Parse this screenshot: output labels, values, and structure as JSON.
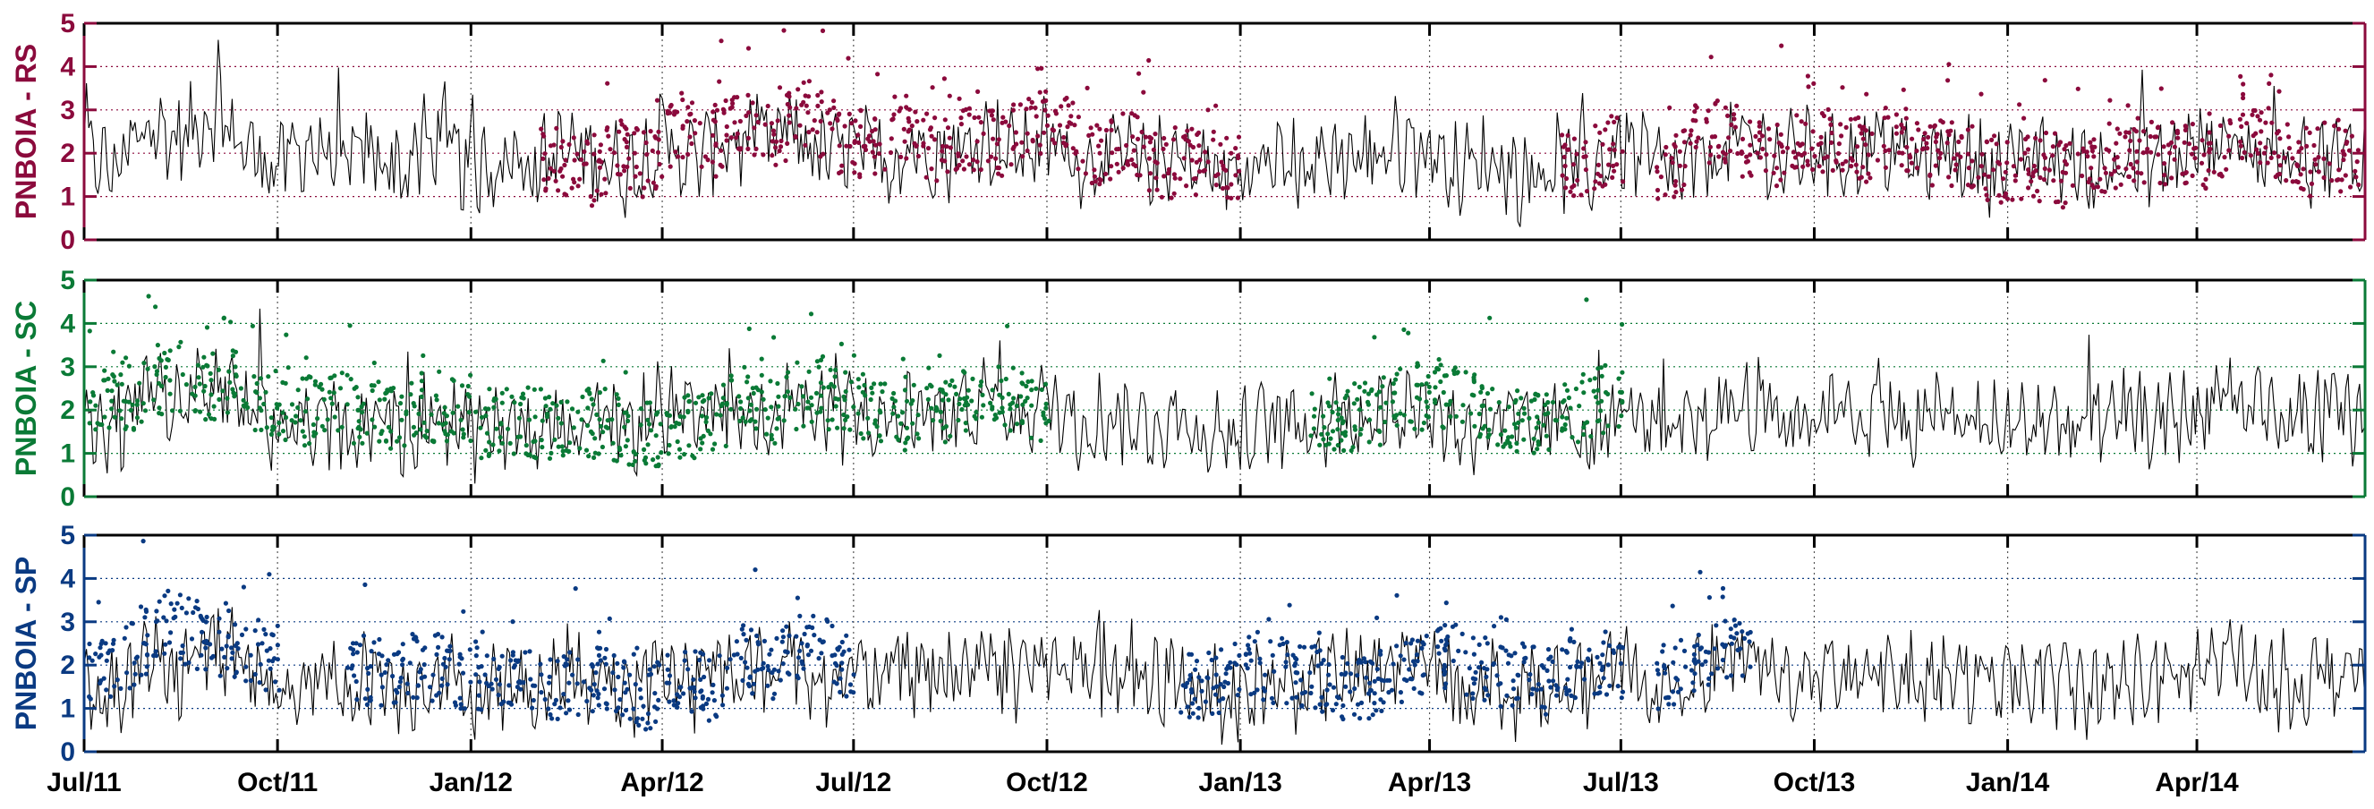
{
  "chart_data": {
    "type": "line",
    "panels": [
      {
        "ylabel": "PNBOIA - RS",
        "color": "#8b0a3c",
        "ylim": [
          0,
          5
        ],
        "yticks": [
          "0",
          "1",
          "2",
          "3",
          "4",
          "5"
        ],
        "series": [
          {
            "label": "",
            "style": "line",
            "color": "#000000",
            "x": [
              "2011-07-01",
              "2011-07-16",
              "2011-08-01",
              "2011-08-16",
              "2011-09-01",
              "2011-09-16",
              "2011-10-01",
              "2011-10-16",
              "2011-11-01",
              "2011-11-16",
              "2011-12-01",
              "2011-12-16",
              "2012-01-01",
              "2012-01-16",
              "2012-02-01",
              "2012-02-16",
              "2012-03-01",
              "2012-03-16",
              "2012-04-01",
              "2012-04-16",
              "2012-05-01",
              "2012-05-16",
              "2012-06-01",
              "2012-06-16",
              "2012-07-01",
              "2012-07-16",
              "2012-08-01",
              "2012-08-16",
              "2012-09-01",
              "2012-09-16",
              "2012-10-01",
              "2012-10-16",
              "2012-11-01",
              "2012-11-16",
              "2012-12-01",
              "2012-12-16",
              "2013-01-01",
              "2013-01-16",
              "2013-02-01",
              "2013-02-16",
              "2013-03-01",
              "2013-03-16",
              "2013-04-01",
              "2013-04-16",
              "2013-05-01",
              "2013-05-16",
              "2013-06-01",
              "2013-06-16",
              "2013-07-01",
              "2013-07-16",
              "2013-08-01",
              "2013-08-16",
              "2013-09-01",
              "2013-09-16",
              "2013-10-01",
              "2013-10-16",
              "2013-11-01",
              "2013-11-16",
              "2013-12-01",
              "2013-12-16",
              "2014-01-01",
              "2014-01-16",
              "2014-02-01",
              "2014-02-16",
              "2014-03-01",
              "2014-03-16",
              "2014-04-01",
              "2014-04-16",
              "2014-05-01",
              "2014-05-16",
              "2014-06-01",
              "2014-06-16"
            ],
            "y": [
              2.0,
              1.6,
              2.6,
              2.3,
              3.0,
              2.1,
              1.7,
              2.2,
              1.8,
              2.0,
              1.6,
              2.3,
              1.5,
              1.9,
              1.7,
              2.1,
              1.9,
              1.6,
              2.3,
              1.8,
              2.4,
              2.0,
              2.6,
              1.9,
              2.1,
              1.8,
              2.2,
              1.9,
              2.4,
              2.0,
              2.3,
              1.8,
              2.0,
              1.7,
              1.9,
              1.6,
              1.5,
              1.8,
              1.7,
              2.0,
              1.9,
              2.2,
              2.1,
              1.6,
              1.9,
              1.4,
              1.8,
              1.5,
              2.2,
              1.7,
              1.5,
              2.0,
              2.3,
              1.8,
              2.1,
              1.9,
              2.2,
              1.7,
              2.0,
              1.8,
              1.6,
              1.9,
              1.7,
              1.5,
              1.9,
              1.8,
              2.1,
              2.4,
              1.9,
              1.6,
              2.0,
              1.8
            ]
          },
          {
            "label": "",
            "style": "dots",
            "color": "#8b0a3c",
            "x": [
              "2012-02-10",
              "2012-02-25",
              "2012-03-10",
              "2012-03-25",
              "2012-04-10",
              "2012-04-25",
              "2012-05-10",
              "2012-05-25",
              "2012-06-10",
              "2012-06-25",
              "2012-07-10",
              "2012-07-25",
              "2012-08-10",
              "2012-08-25",
              "2012-09-10",
              "2012-09-25",
              "2012-10-10",
              "2012-10-25",
              "2012-11-10",
              "2012-11-25",
              "2012-12-10",
              "2012-12-25",
              "2013-06-10",
              "2013-06-25",
              "2013-07-25",
              "2013-08-10",
              "2013-08-25",
              "2013-09-10",
              "2013-09-25",
              "2013-10-10",
              "2013-10-25",
              "2013-11-10",
              "2013-11-25",
              "2013-12-10",
              "2013-12-25",
              "2014-01-10",
              "2014-01-25",
              "2014-02-10",
              "2014-02-25",
              "2014-03-10",
              "2014-03-25",
              "2014-04-10",
              "2014-04-25",
              "2014-05-10",
              "2014-05-25",
              "2014-06-10"
            ],
            "y": [
              1.8,
              1.5,
              2.0,
              1.7,
              2.6,
              2.2,
              2.8,
              2.4,
              3.0,
              2.1,
              2.3,
              2.6,
              2.0,
              2.4,
              2.2,
              2.7,
              2.5,
              1.9,
              2.2,
              1.6,
              1.8,
              1.7,
              1.7,
              2.1,
              1.6,
              2.6,
              2.3,
              2.0,
              2.2,
              2.3,
              2.0,
              2.4,
              1.9,
              2.1,
              1.6,
              1.7,
              1.5,
              1.8,
              2.0,
              2.1,
              2.0,
              1.9,
              2.7,
              2.2,
              1.8,
              1.9
            ]
          }
        ]
      },
      {
        "ylabel": "PNBOIA - SC",
        "color": "#0a7a36",
        "ylim": [
          0,
          5
        ],
        "yticks": [
          "0",
          "1",
          "2",
          "3",
          "4",
          "5"
        ],
        "series": [
          {
            "label": "",
            "style": "line",
            "color": "#000000",
            "x": [
              "2011-07-01",
              "2011-07-16",
              "2011-08-01",
              "2011-08-16",
              "2011-09-01",
              "2011-09-16",
              "2011-10-01",
              "2011-10-16",
              "2011-11-01",
              "2011-11-16",
              "2011-12-01",
              "2011-12-16",
              "2012-01-01",
              "2012-01-16",
              "2012-02-01",
              "2012-02-16",
              "2012-03-01",
              "2012-03-16",
              "2012-04-01",
              "2012-04-16",
              "2012-05-01",
              "2012-05-16",
              "2012-06-01",
              "2012-06-16",
              "2012-07-01",
              "2012-07-16",
              "2012-08-01",
              "2012-08-16",
              "2012-09-01",
              "2012-09-16",
              "2012-10-01",
              "2012-10-16",
              "2012-11-01",
              "2012-11-16",
              "2012-12-01",
              "2012-12-16",
              "2013-01-01",
              "2013-01-16",
              "2013-02-01",
              "2013-02-16",
              "2013-03-01",
              "2013-03-16",
              "2013-04-01",
              "2013-04-16",
              "2013-05-01",
              "2013-05-16",
              "2013-06-01",
              "2013-06-16",
              "2013-07-01",
              "2013-07-16",
              "2013-08-01",
              "2013-08-16",
              "2013-09-01",
              "2013-09-16",
              "2013-10-01",
              "2013-10-16",
              "2013-11-01",
              "2013-11-16",
              "2013-12-01",
              "2013-12-16",
              "2014-01-01",
              "2014-01-16",
              "2014-02-01",
              "2014-02-16",
              "2014-03-01",
              "2014-03-16",
              "2014-04-01",
              "2014-04-16",
              "2014-05-01",
              "2014-05-16",
              "2014-06-01",
              "2014-06-16"
            ],
            "y": [
              1.6,
              1.4,
              2.4,
              2.0,
              2.6,
              1.9,
              1.5,
              1.8,
              1.6,
              1.9,
              1.5,
              2.0,
              1.4,
              1.7,
              1.5,
              1.9,
              1.7,
              1.5,
              2.1,
              1.6,
              2.2,
              1.8,
              2.4,
              1.8,
              1.9,
              1.7,
              2.0,
              1.8,
              2.3,
              1.9,
              2.2,
              1.7,
              1.9,
              1.6,
              1.8,
              1.5,
              1.4,
              1.7,
              1.6,
              1.9,
              1.8,
              2.1,
              2.0,
              1.5,
              1.8,
              1.4,
              1.7,
              1.5,
              2.1,
              1.6,
              1.5,
              2.0,
              2.2,
              1.7,
              2.0,
              1.8,
              2.1,
              1.6,
              1.9,
              1.7,
              1.5,
              1.8,
              1.6,
              1.5,
              1.8,
              1.7,
              2.0,
              2.3,
              1.8,
              1.6,
              1.9,
              1.8
            ]
          },
          {
            "label": "",
            "style": "dots",
            "color": "#0a7a36",
            "x": [
              "2011-07-10",
              "2011-07-25",
              "2011-08-10",
              "2011-08-25",
              "2011-09-10",
              "2011-09-25",
              "2011-10-10",
              "2011-10-25",
              "2011-11-10",
              "2011-11-25",
              "2011-12-10",
              "2011-12-25",
              "2012-01-10",
              "2012-01-25",
              "2012-02-10",
              "2012-02-25",
              "2012-03-10",
              "2012-03-25",
              "2012-04-10",
              "2012-04-25",
              "2012-05-10",
              "2012-05-25",
              "2012-06-10",
              "2012-06-25",
              "2012-07-10",
              "2012-07-25",
              "2012-08-10",
              "2012-08-25",
              "2012-09-10",
              "2012-09-25",
              "2013-02-10",
              "2013-02-25",
              "2013-03-10",
              "2013-03-25",
              "2013-04-10",
              "2013-04-25",
              "2013-05-10",
              "2013-05-25",
              "2013-06-10",
              "2013-06-25"
            ],
            "y": [
              2.0,
              2.3,
              2.8,
              2.5,
              2.6,
              2.2,
              1.9,
              2.1,
              2.0,
              1.8,
              2.1,
              1.9,
              1.6,
              1.8,
              1.5,
              1.7,
              1.6,
              1.4,
              1.7,
              1.6,
              2.3,
              2.0,
              2.5,
              2.2,
              2.1,
              1.8,
              2.0,
              2.2,
              2.4,
              2.1,
              1.6,
              1.9,
              2.0,
              2.3,
              2.4,
              2.0,
              1.8,
              1.6,
              2.0,
              2.3
            ]
          }
        ]
      },
      {
        "ylabel": "PNBOIA - SP",
        "color": "#0a3a82",
        "ylim": [
          0,
          5
        ],
        "yticks": [
          "0",
          "1",
          "2",
          "3",
          "4",
          "5"
        ],
        "series": [
          {
            "label": "",
            "style": "line",
            "color": "#000000",
            "x": [
              "2011-07-01",
              "2011-07-16",
              "2011-08-01",
              "2011-08-16",
              "2011-09-01",
              "2011-09-16",
              "2011-10-01",
              "2011-10-16",
              "2011-11-01",
              "2011-11-16",
              "2011-12-01",
              "2011-12-16",
              "2012-01-01",
              "2012-01-16",
              "2012-02-01",
              "2012-02-16",
              "2012-03-01",
              "2012-03-16",
              "2012-04-01",
              "2012-04-16",
              "2012-05-01",
              "2012-05-16",
              "2012-06-01",
              "2012-06-16",
              "2012-07-01",
              "2012-07-16",
              "2012-08-01",
              "2012-08-16",
              "2012-09-01",
              "2012-09-16",
              "2012-10-01",
              "2012-10-16",
              "2012-11-01",
              "2012-11-16",
              "2012-12-01",
              "2012-12-16",
              "2013-01-01",
              "2013-01-16",
              "2013-02-01",
              "2013-02-16",
              "2013-03-01",
              "2013-03-16",
              "2013-04-01",
              "2013-04-16",
              "2013-05-01",
              "2013-05-16",
              "2013-06-01",
              "2013-06-16",
              "2013-07-01",
              "2013-07-16",
              "2013-08-01",
              "2013-08-16",
              "2013-09-01",
              "2013-09-16",
              "2013-10-01",
              "2013-10-16",
              "2013-11-01",
              "2013-11-16",
              "2013-12-01",
              "2013-12-16",
              "2014-01-01",
              "2014-01-16",
              "2014-02-01",
              "2014-02-16",
              "2014-03-01",
              "2014-03-16",
              "2014-04-01",
              "2014-04-16",
              "2014-05-01",
              "2014-05-16",
              "2014-06-01",
              "2014-06-16"
            ],
            "y": [
              1.5,
              1.3,
              2.2,
              1.9,
              2.5,
              1.8,
              1.4,
              1.7,
              1.5,
              1.8,
              1.4,
              1.9,
              1.3,
              1.6,
              1.4,
              1.8,
              1.6,
              1.4,
              2.0,
              1.5,
              2.1,
              1.7,
              2.3,
              1.7,
              1.8,
              1.6,
              1.9,
              1.7,
              2.2,
              1.8,
              2.1,
              1.6,
              1.8,
              1.5,
              1.7,
              1.4,
              1.3,
              1.6,
              1.5,
              1.8,
              1.7,
              2.0,
              1.9,
              1.4,
              1.7,
              1.3,
              1.6,
              1.4,
              2.0,
              1.5,
              1.4,
              1.9,
              2.1,
              1.6,
              1.9,
              1.7,
              2.0,
              1.5,
              1.8,
              1.6,
              1.4,
              1.7,
              1.5,
              1.4,
              1.7,
              1.6,
              1.9,
              2.2,
              1.7,
              1.5,
              1.8,
              1.7
            ]
          },
          {
            "label": "",
            "style": "dots",
            "color": "#0a3a82",
            "x": [
              "2011-07-10",
              "2011-07-25",
              "2011-08-10",
              "2011-08-25",
              "2011-09-10",
              "2011-09-25",
              "2011-11-10",
              "2011-11-25",
              "2011-12-10",
              "2011-12-25",
              "2012-01-10",
              "2012-01-25",
              "2012-02-10",
              "2012-02-25",
              "2012-03-10",
              "2012-03-25",
              "2012-04-10",
              "2012-04-25",
              "2012-05-10",
              "2012-05-25",
              "2012-06-10",
              "2012-06-25",
              "2012-12-10",
              "2012-12-25",
              "2013-01-10",
              "2013-01-25",
              "2013-02-10",
              "2013-02-25",
              "2013-03-10",
              "2013-03-25",
              "2013-04-10",
              "2013-04-25",
              "2013-05-10",
              "2013-05-25",
              "2013-06-10",
              "2013-06-25",
              "2013-07-25",
              "2013-08-10",
              "2013-08-25"
            ],
            "y": [
              2.0,
              2.3,
              3.0,
              2.6,
              2.5,
              2.2,
              1.9,
              1.7,
              2.0,
              1.8,
              1.6,
              1.8,
              1.5,
              1.7,
              1.5,
              1.3,
              1.6,
              1.5,
              2.2,
              1.9,
              2.6,
              2.0,
              1.5,
              1.7,
              2.0,
              1.8,
              1.6,
              1.4,
              1.7,
              1.9,
              2.2,
              1.9,
              1.8,
              1.6,
              1.9,
              2.0,
              1.7,
              2.2,
              2.4
            ]
          }
        ]
      }
    ],
    "x_tick_labels": [
      {
        "label": "Jul/11",
        "date": "2011-07-01"
      },
      {
        "label": "Oct/11",
        "date": "2011-10-01"
      },
      {
        "label": "Jan/12",
        "date": "2012-01-01"
      },
      {
        "label": "Apr/12",
        "date": "2012-04-01"
      },
      {
        "label": "Jul/12",
        "date": "2012-07-01"
      },
      {
        "label": "Oct/12",
        "date": "2012-10-01"
      },
      {
        "label": "Jan/13",
        "date": "2013-01-01"
      },
      {
        "label": "Apr/13",
        "date": "2013-04-01"
      },
      {
        "label": "Jul/13",
        "date": "2013-07-01"
      },
      {
        "label": "Oct/13",
        "date": "2013-10-01"
      },
      {
        "label": "Jan/14",
        "date": "2014-01-01"
      },
      {
        "label": "Apr/14",
        "date": "2014-04-01"
      }
    ],
    "xlim": [
      "2011-07-01",
      "2014-06-20"
    ],
    "grid": true,
    "legend": "none"
  }
}
